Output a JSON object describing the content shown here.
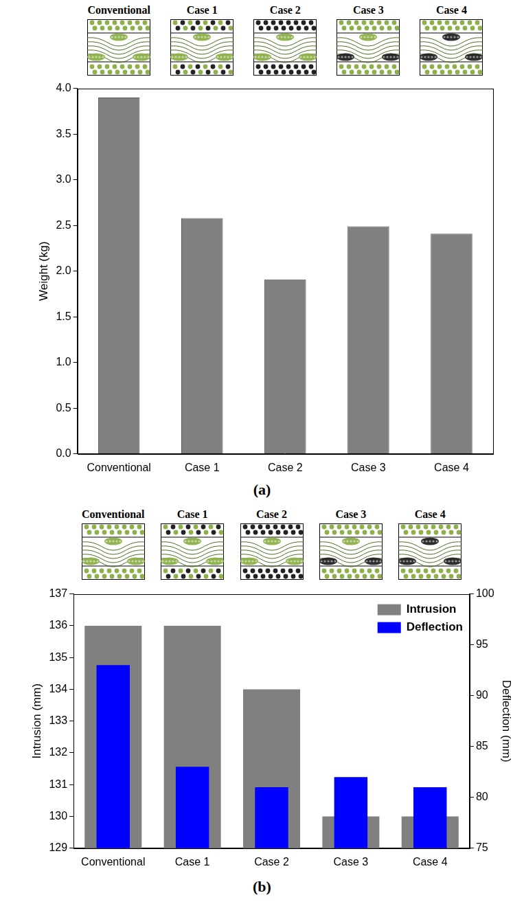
{
  "chart_data": [
    {
      "type": "bar",
      "panel_label": "(a)",
      "schematic_titles": [
        "Conventional",
        "Case 1",
        "Case 2",
        "Case 3",
        "Case 4"
      ],
      "categories": [
        "Conventional",
        "Case 1",
        "Case 2",
        "Case 3",
        "Case 4"
      ],
      "values": [
        3.9,
        2.58,
        1.91,
        2.49,
        2.41
      ],
      "color": "#808080",
      "y_label": "Weight (kg)",
      "ylim": [
        0,
        4.0
      ],
      "yticks": [
        {
          "value": 0,
          "label": "0.0"
        },
        0.5,
        {
          "value": 1,
          "label": "1.0"
        },
        1.5,
        {
          "value": 2,
          "label": "2.0"
        },
        2.5,
        {
          "value": 3,
          "label": "3.0"
        },
        3.5,
        {
          "value": 4,
          "label": "4.0"
        }
      ],
      "grid": false
    },
    {
      "type": "bar",
      "panel_label": "(b)",
      "schematic_titles": [
        "Conventional",
        "Case 1",
        "Case 2",
        "Case 3",
        "Case 4"
      ],
      "categories": [
        "Conventional",
        "Case 1",
        "Case 2",
        "Case 3",
        "Case 4"
      ],
      "series": [
        {
          "name": "Intrusion",
          "color": "#808080",
          "values": [
            136,
            136,
            134,
            130,
            130
          ]
        },
        {
          "name": "Deflection",
          "color": "#0000ff",
          "values": [
            93,
            83,
            81,
            82,
            81
          ],
          "axis": "y2"
        }
      ],
      "y_label": "Intrusion (mm)",
      "y2_label": "Deflection (mm)",
      "ylim": [
        129,
        137
      ],
      "yticks": [
        129,
        130,
        131,
        132,
        133,
        134,
        135,
        136,
        137
      ],
      "y2lim": [
        75,
        100
      ],
      "y2ticks": [
        75,
        80,
        85,
        90,
        95,
        100
      ],
      "legend": "upper right",
      "grid": false
    }
  ]
}
